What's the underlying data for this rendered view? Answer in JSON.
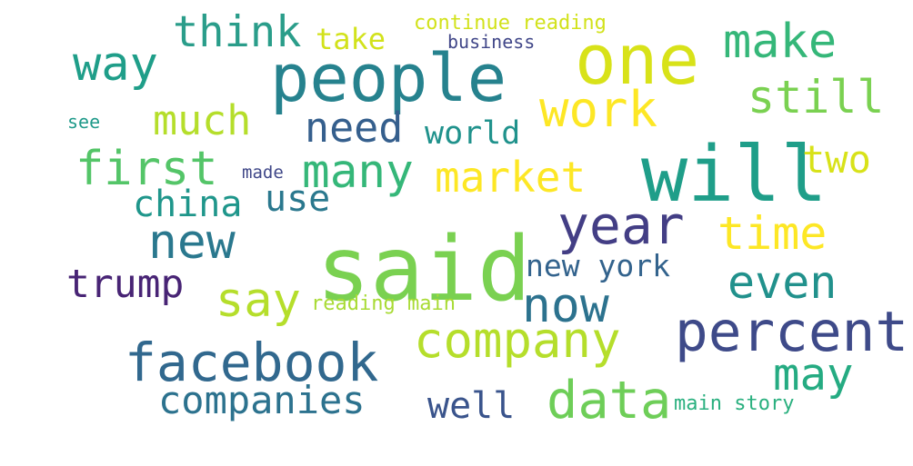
{
  "palette": {
    "background": "#ffffff",
    "dark_purple": "#48186a",
    "indigo": "#3b528b",
    "blue": "#2c728e",
    "teal": "#21918c",
    "green": "#28ae80",
    "light_green": "#5ec962",
    "lime": "#addc30",
    "yellow": "#fde725"
  },
  "words": [
    {
      "text": "said",
      "color": "#7ad151"
    },
    {
      "text": "will",
      "color": "#1f9e89"
    },
    {
      "text": "people",
      "color": "#26828e"
    },
    {
      "text": "one",
      "color": "#d8e219"
    },
    {
      "text": "facebook",
      "color": "#31688e"
    },
    {
      "text": "company",
      "color": "#b5de2b"
    },
    {
      "text": "percent",
      "color": "#3e4a89"
    },
    {
      "text": "year",
      "color": "#433e85"
    },
    {
      "text": "data",
      "color": "#6ece58"
    },
    {
      "text": "work",
      "color": "#fde725"
    },
    {
      "text": "many",
      "color": "#35b779"
    },
    {
      "text": "now",
      "color": "#2c728e"
    },
    {
      "text": "new",
      "color": "#2a788e"
    },
    {
      "text": "first",
      "color": "#54c568"
    },
    {
      "text": "make",
      "color": "#35b779"
    },
    {
      "text": "say",
      "color": "#b5de2b"
    },
    {
      "text": "way",
      "color": "#1f9e89"
    },
    {
      "text": "market",
      "color": "#fde725"
    },
    {
      "text": "even",
      "color": "#21918c"
    },
    {
      "text": "time",
      "color": "#fde725"
    },
    {
      "text": "companies",
      "color": "#2c728e"
    },
    {
      "text": "still",
      "color": "#7ad151"
    },
    {
      "text": "may",
      "color": "#25ab82"
    },
    {
      "text": "think",
      "color": "#2a9d8a"
    },
    {
      "text": "much",
      "color": "#b5de2b"
    },
    {
      "text": "need",
      "color": "#355f8d"
    },
    {
      "text": "trump",
      "color": "#482475"
    },
    {
      "text": "china",
      "color": "#1f968b"
    },
    {
      "text": "use",
      "color": "#2a788e"
    },
    {
      "text": "two",
      "color": "#d8e219"
    },
    {
      "text": "new york",
      "color": "#33638d"
    },
    {
      "text": "well",
      "color": "#3a548c"
    },
    {
      "text": "world",
      "color": "#20928c"
    },
    {
      "text": "take",
      "color": "#d2e21b"
    },
    {
      "text": "continue reading",
      "color": "#d2e21b"
    },
    {
      "text": "business",
      "color": "#404688"
    },
    {
      "text": "reading main",
      "color": "#a8db34"
    },
    {
      "text": "main story",
      "color": "#2ab07f"
    },
    {
      "text": "made",
      "color": "#3f4788"
    },
    {
      "text": "see",
      "color": "#1f9a8a"
    }
  ]
}
